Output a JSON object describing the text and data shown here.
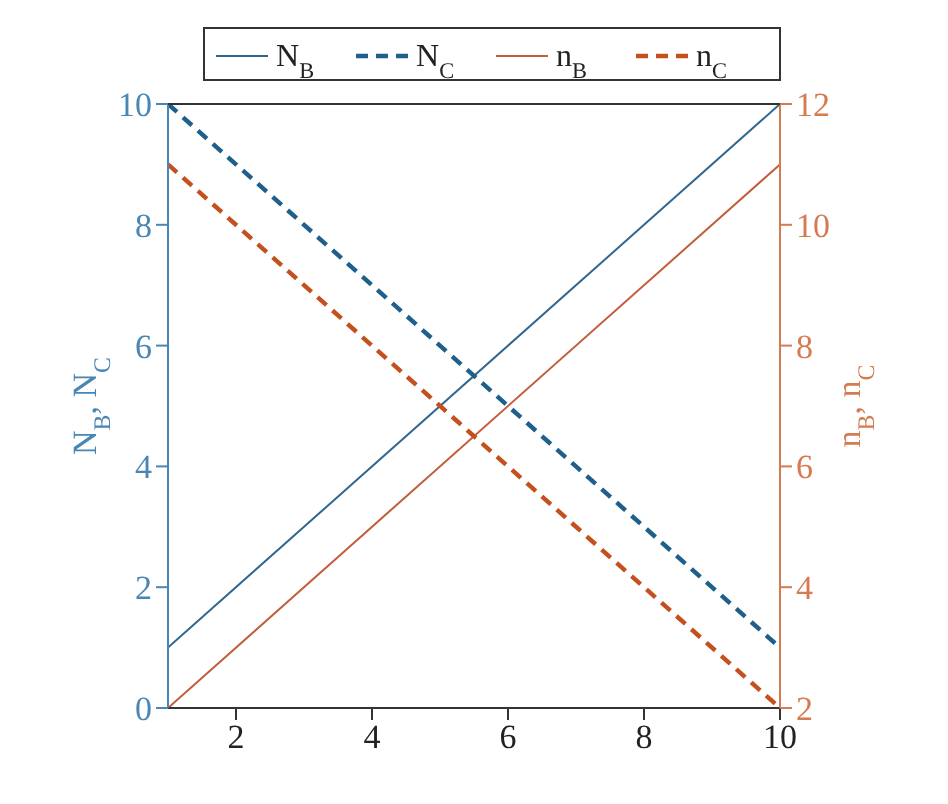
{
  "chart_data": {
    "type": "line",
    "ylabel": "N$_{B}$, N$_{C}$",
    "y2label": "n$_{B}$, n$_{C}$",
    "x": [
      1,
      10
    ],
    "series": [
      {
        "name": "N$_{B}$",
        "color": "#2f6690",
        "values": [
          1,
          10
        ],
        "line_style": "solid"
      },
      {
        "name": "N$_{C}$",
        "color": "#1f5f8b",
        "values": [
          10,
          1
        ],
        "line_style": "dashed"
      },
      {
        "name": "n$_{B}$",
        "color": "#c25c3a",
        "values": [
          2,
          11
        ],
        "axis": "y2",
        "line_style": "solid"
      },
      {
        "name": "n$_{C}$",
        "color": "#c4501e",
        "values": [
          11,
          2
        ],
        "axis": "y2",
        "line_style": "dashed"
      }
    ],
    "xlim": [
      1,
      10
    ],
    "xticks": [
      2,
      4,
      6,
      8,
      10
    ],
    "ylim": [
      0,
      10
    ],
    "yticks": [
      0,
      2,
      4,
      6,
      8,
      10
    ],
    "y2lim": [
      2,
      12
    ],
    "y2ticks": [
      2,
      4,
      6,
      8,
      10,
      12
    ],
    "legend": "top",
    "marker": "none"
  }
}
